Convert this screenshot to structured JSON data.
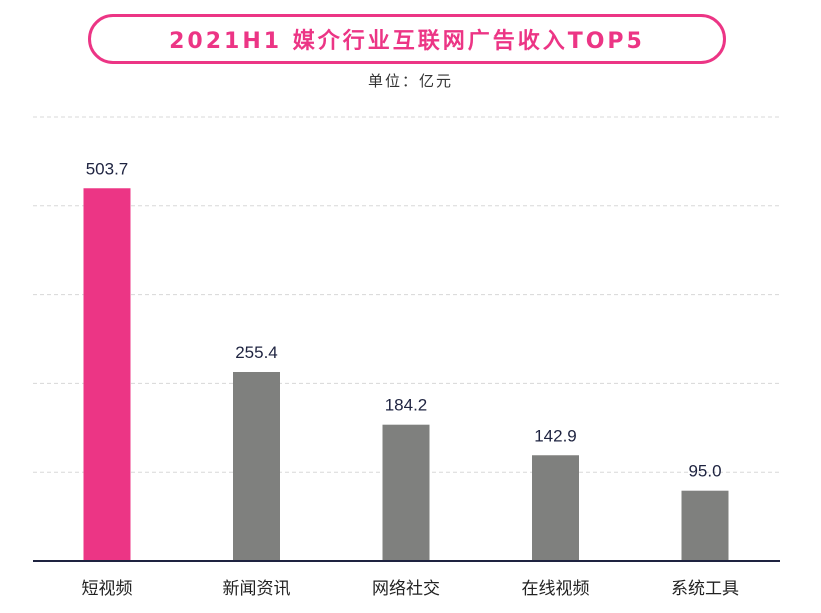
{
  "chart_data": {
    "type": "bar",
    "title": "2021H1 媒介行业互联网广告收入TOP5",
    "unit": "单位：亿元",
    "categories": [
      "短视频",
      "新闻资讯",
      "网络社交",
      "在线视频",
      "系统工具"
    ],
    "values": [
      503.7,
      255.4,
      184.2,
      142.9,
      95.0
    ],
    "value_labels": [
      "503.7",
      "255.4",
      "184.2",
      "142.9",
      "95.0"
    ],
    "ylim": [
      0,
      600
    ],
    "gridlines": [
      120,
      240,
      360,
      480,
      600
    ],
    "grid": true,
    "colors": {
      "highlight": "#ec3585",
      "default": "#7f807e",
      "label": "#1e2340",
      "axis": "#1e2340",
      "grid": "#d8d8d8"
    }
  }
}
